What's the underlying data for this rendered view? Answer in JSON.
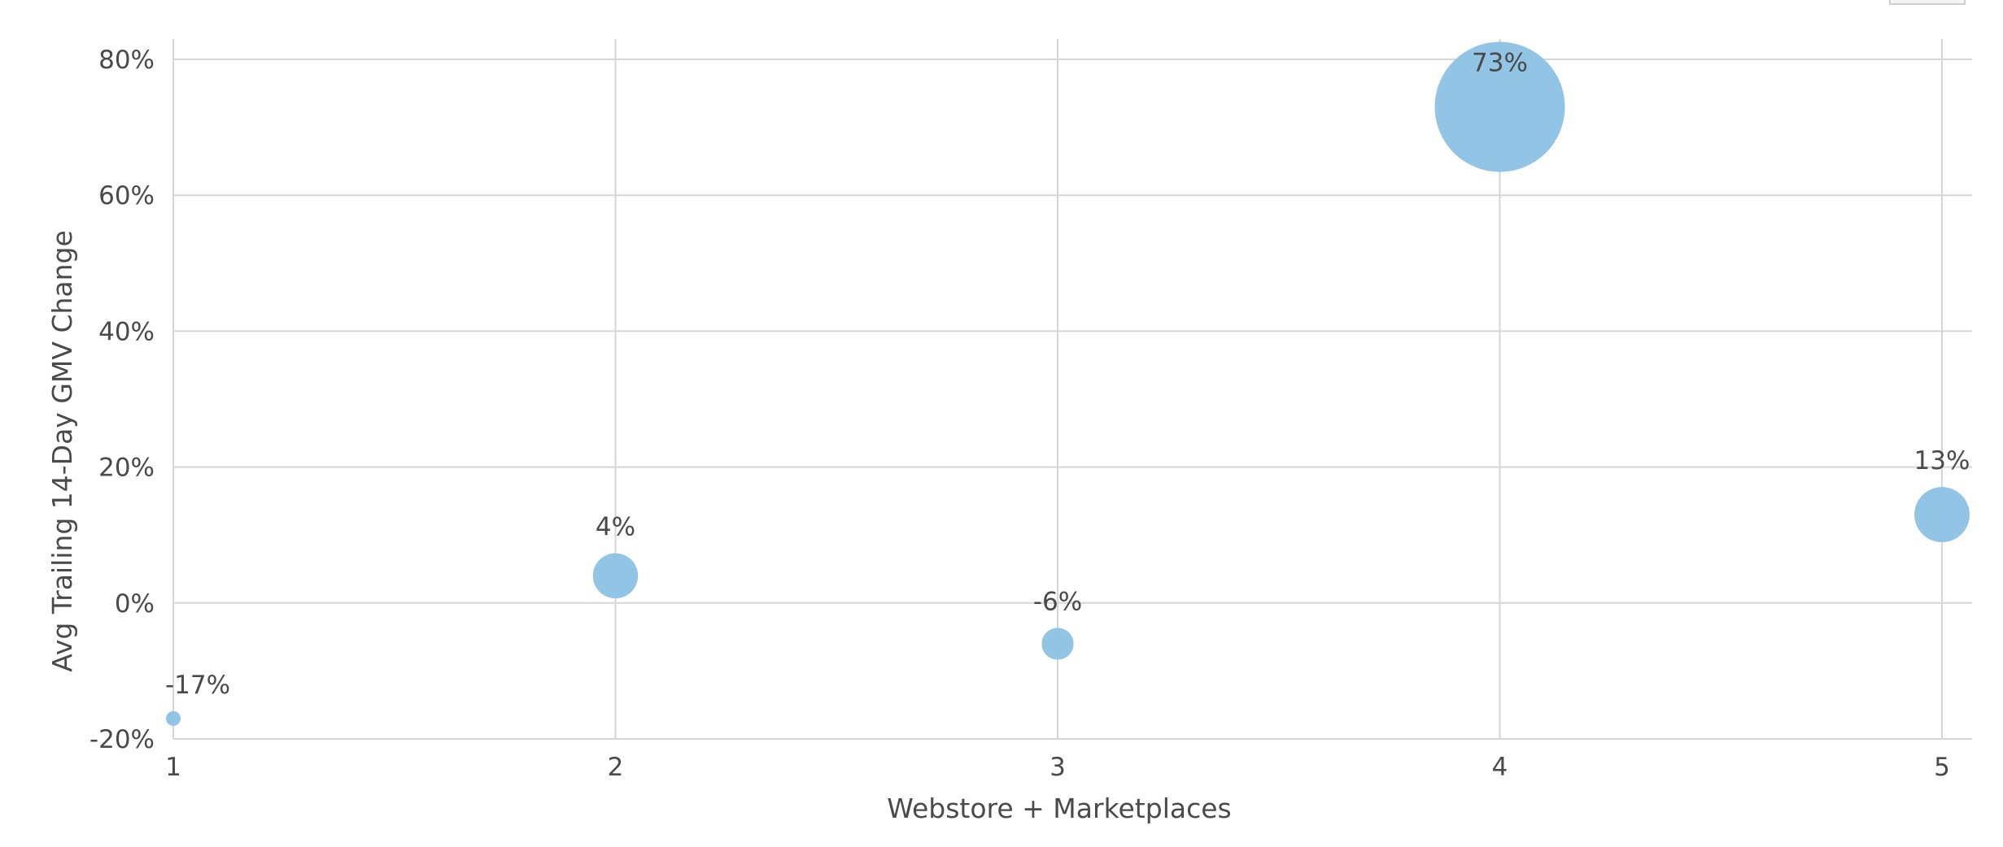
{
  "chart_data": {
    "type": "scatter",
    "title": "",
    "xlabel": "Webstore + Marketplaces",
    "ylabel": "Avg Trailing 14-Day GMV Change",
    "xlim": [
      1,
      5
    ],
    "ylim": [
      -20,
      80
    ],
    "x_ticks": [
      "1",
      "2",
      "3",
      "4",
      "5"
    ],
    "y_ticks": [
      "-20%",
      "0%",
      "20%",
      "40%",
      "60%",
      "80%"
    ],
    "grid": true,
    "legend": "none",
    "bubble_color": "#91c4e5",
    "series": [
      {
        "points": [
          {
            "x": 1,
            "y": -17,
            "size": 1,
            "label": "-17%"
          },
          {
            "x": 2,
            "y": 4,
            "size": 12,
            "label": "4%"
          },
          {
            "x": 3,
            "y": -6,
            "size": 6,
            "label": "-6%"
          },
          {
            "x": 4,
            "y": 73,
            "size": 100,
            "label": "73%"
          },
          {
            "x": 5,
            "y": 13,
            "size": 18,
            "label": "13%"
          }
        ]
      }
    ]
  }
}
